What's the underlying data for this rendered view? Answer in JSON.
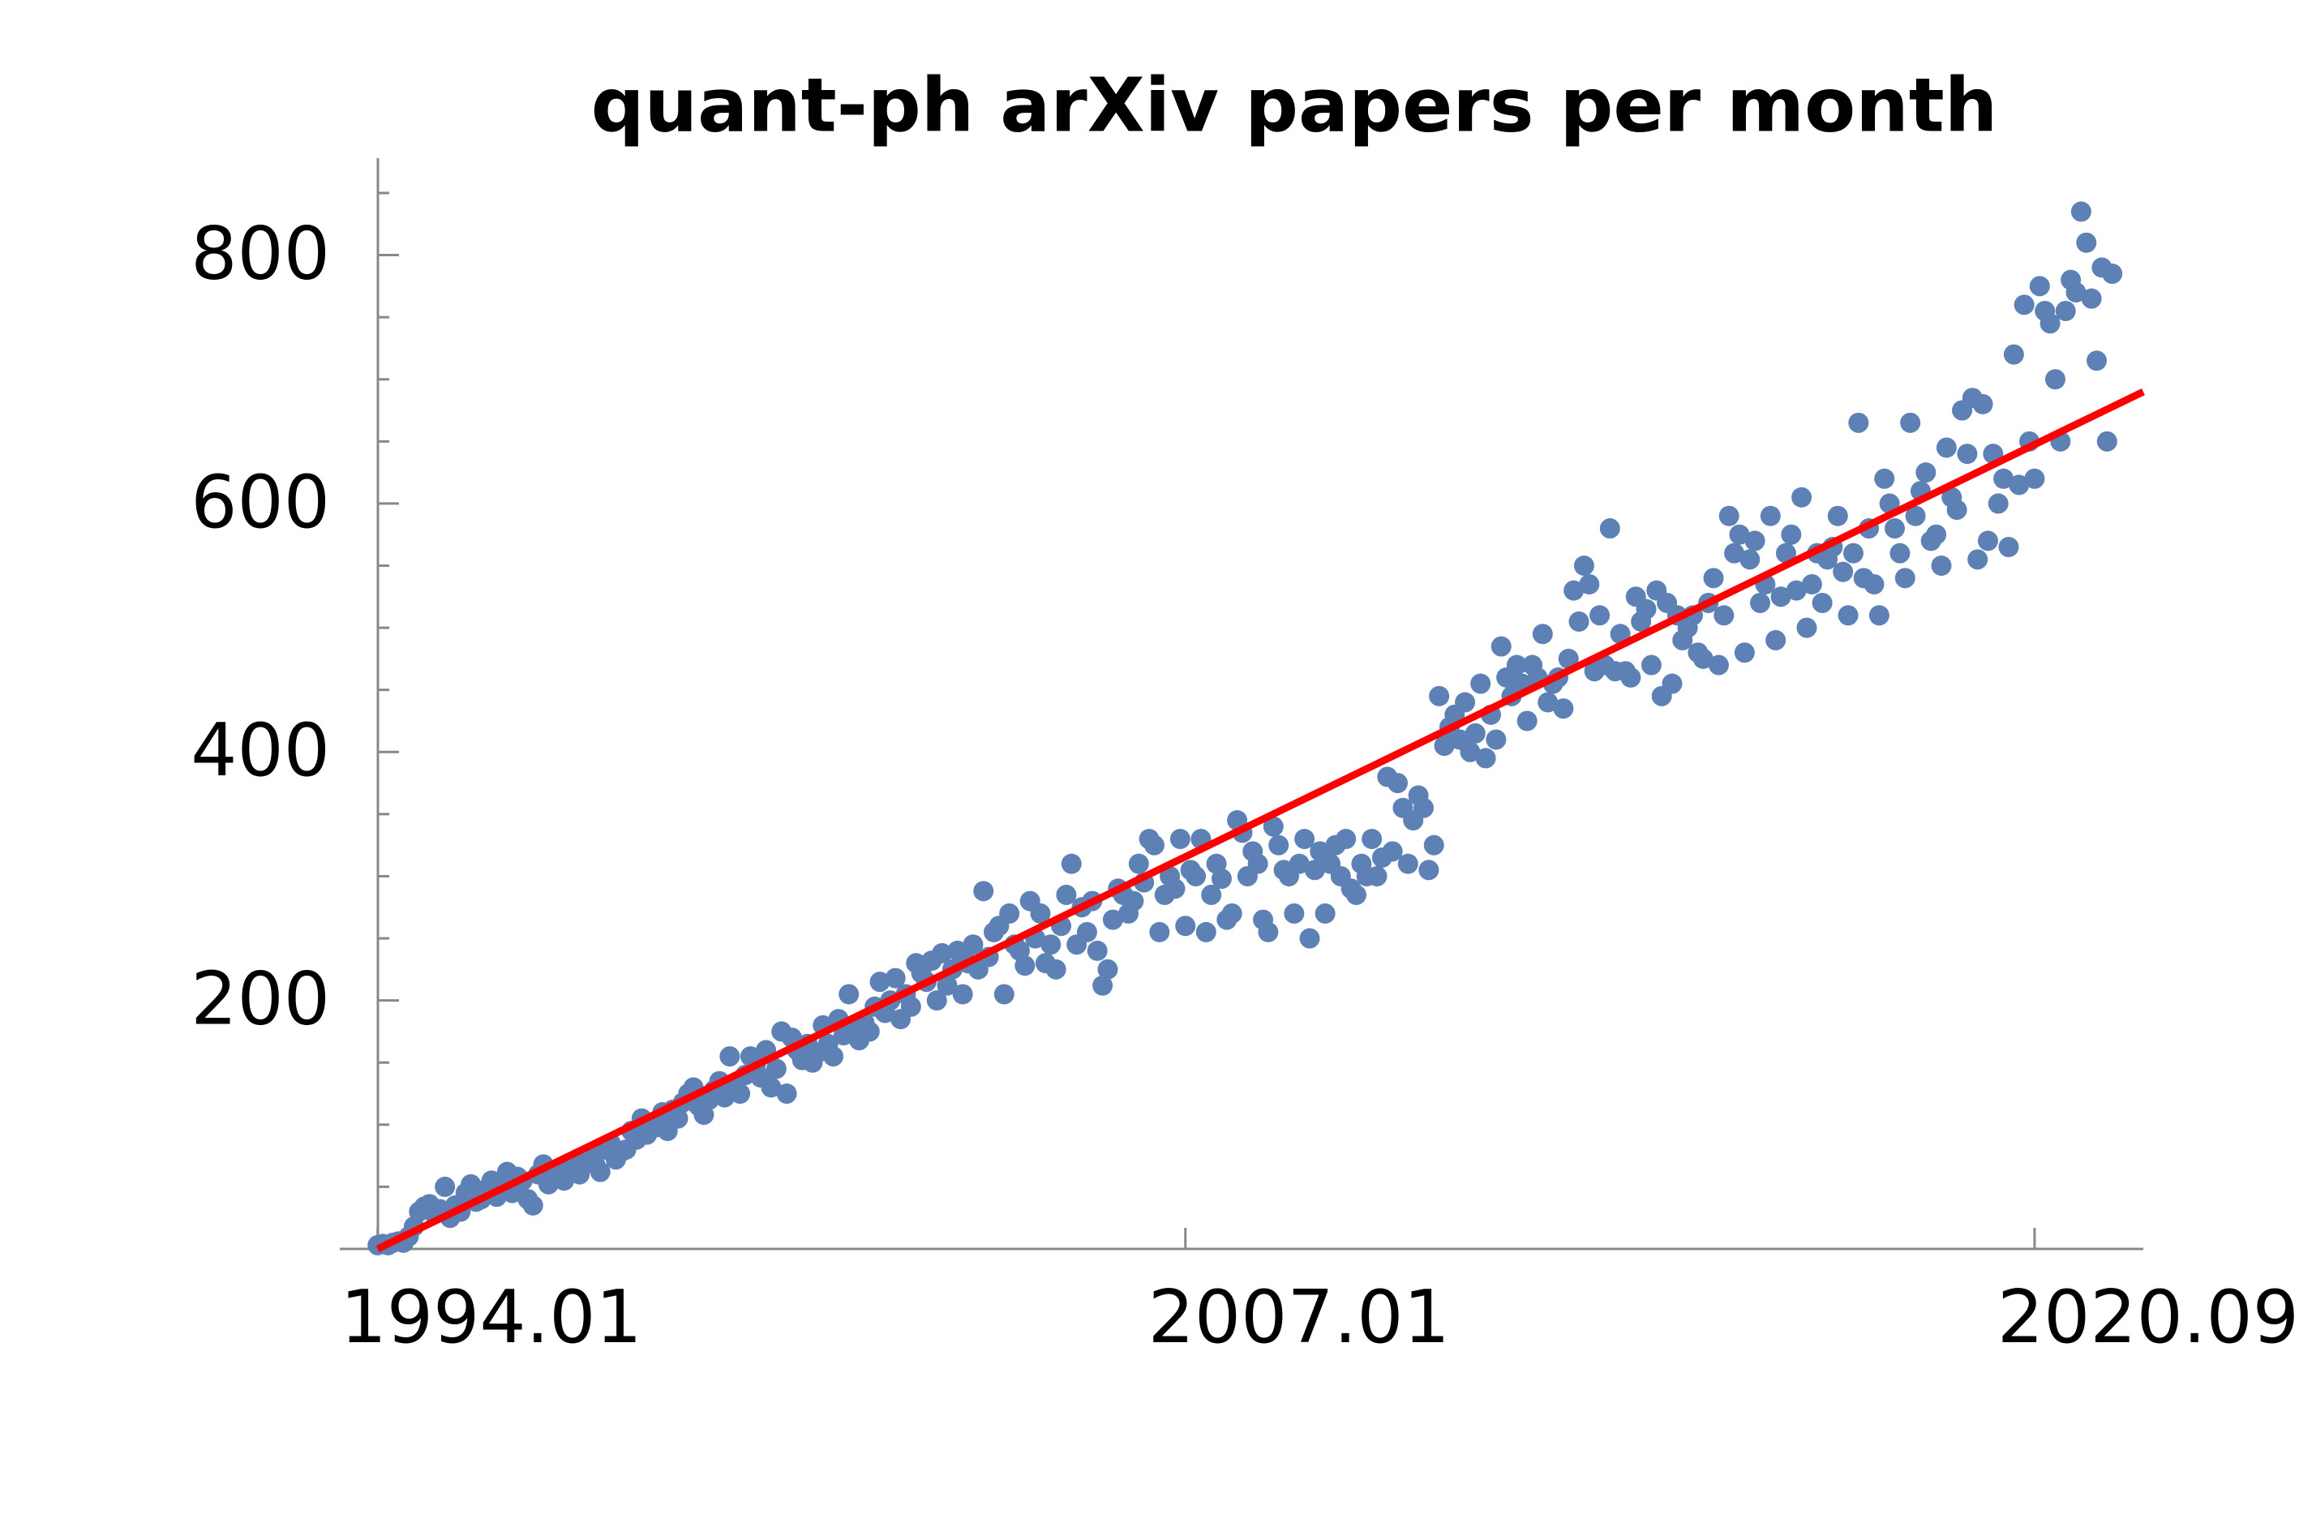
{
  "chart_data": {
    "type": "scatter",
    "title": "quant-ph arXiv papers per month",
    "x": [
      "1994.01",
      "1994.02",
      "1994.03",
      "1994.04",
      "1994.05",
      "1994.06",
      "1994.07",
      "1994.08",
      "1994.09",
      "1994.10",
      "1994.11",
      "1994.12",
      "1995.01",
      "1995.02",
      "1995.03",
      "1995.04",
      "1995.05",
      "1995.06",
      "1995.07",
      "1995.08",
      "1995.09",
      "1995.10",
      "1995.11",
      "1995.12",
      "1996.01",
      "1996.02",
      "1996.03",
      "1996.04",
      "1996.05",
      "1996.06",
      "1996.07",
      "1996.08",
      "1996.09",
      "1996.10",
      "1996.11",
      "1996.12",
      "1997.01",
      "1997.02",
      "1997.03",
      "1997.04",
      "1997.05",
      "1997.06",
      "1997.07",
      "1997.08",
      "1997.09",
      "1997.10",
      "1997.11",
      "1997.12",
      "1998.01",
      "1998.02",
      "1998.03",
      "1998.04",
      "1998.05",
      "1998.06",
      "1998.07",
      "1998.08",
      "1998.09",
      "1998.10",
      "1998.11",
      "1998.12",
      "1999.01",
      "1999.02",
      "1999.03",
      "1999.04",
      "1999.05",
      "1999.06",
      "1999.07",
      "1999.08",
      "1999.09",
      "1999.10",
      "1999.11",
      "1999.12",
      "2000.01",
      "2000.02",
      "2000.03",
      "2000.04",
      "2000.05",
      "2000.06",
      "2000.07",
      "2000.08",
      "2000.09",
      "2000.10",
      "2000.11",
      "2000.12",
      "2001.01",
      "2001.02",
      "2001.03",
      "2001.04",
      "2001.05",
      "2001.06",
      "2001.07",
      "2001.08",
      "2001.09",
      "2001.10",
      "2001.11",
      "2001.12",
      "2002.01",
      "2002.02",
      "2002.03",
      "2002.04",
      "2002.05",
      "2002.06",
      "2002.07",
      "2002.08",
      "2002.09",
      "2002.10",
      "2002.11",
      "2002.12",
      "2003.01",
      "2003.02",
      "2003.03",
      "2003.04",
      "2003.05",
      "2003.06",
      "2003.07",
      "2003.08",
      "2003.09",
      "2003.10",
      "2003.11",
      "2003.12",
      "2004.01",
      "2004.02",
      "2004.03",
      "2004.04",
      "2004.05",
      "2004.06",
      "2004.07",
      "2004.08",
      "2004.09",
      "2004.10",
      "2004.11",
      "2004.12",
      "2005.01",
      "2005.02",
      "2005.03",
      "2005.04",
      "2005.05",
      "2005.06",
      "2005.07",
      "2005.08",
      "2005.09",
      "2005.10",
      "2005.11",
      "2005.12",
      "2006.01",
      "2006.02",
      "2006.03",
      "2006.04",
      "2006.05",
      "2006.06",
      "2006.07",
      "2006.08",
      "2006.09",
      "2006.10",
      "2006.11",
      "2006.12",
      "2007.01",
      "2007.02",
      "2007.03",
      "2007.04",
      "2007.05",
      "2007.06",
      "2007.07",
      "2007.08",
      "2007.09",
      "2007.10",
      "2007.11",
      "2007.12",
      "2008.01",
      "2008.02",
      "2008.03",
      "2008.04",
      "2008.05",
      "2008.06",
      "2008.07",
      "2008.08",
      "2008.09",
      "2008.10",
      "2008.11",
      "2008.12",
      "2009.01",
      "2009.02",
      "2009.03",
      "2009.04",
      "2009.05",
      "2009.06",
      "2009.07",
      "2009.08",
      "2009.09",
      "2009.10",
      "2009.11",
      "2009.12",
      "2010.01",
      "2010.02",
      "2010.03",
      "2010.04",
      "2010.05",
      "2010.06",
      "2010.07",
      "2010.08",
      "2010.09",
      "2010.10",
      "2010.11",
      "2010.12",
      "2011.01",
      "2011.02",
      "2011.03",
      "2011.04",
      "2011.05",
      "2011.06",
      "2011.07",
      "2011.08",
      "2011.09",
      "2011.10",
      "2011.11",
      "2011.12",
      "2012.01",
      "2012.02",
      "2012.03",
      "2012.04",
      "2012.05",
      "2012.06",
      "2012.07",
      "2012.08",
      "2012.09",
      "2012.10",
      "2012.11",
      "2012.12",
      "2013.01",
      "2013.02",
      "2013.03",
      "2013.04",
      "2013.05",
      "2013.06",
      "2013.07",
      "2013.08",
      "2013.09",
      "2013.10",
      "2013.11",
      "2013.12",
      "2014.01",
      "2014.02",
      "2014.03",
      "2014.04",
      "2014.05",
      "2014.06",
      "2014.07",
      "2014.08",
      "2014.09",
      "2014.10",
      "2014.11",
      "2014.12",
      "2015.01",
      "2015.02",
      "2015.03",
      "2015.04",
      "2015.05",
      "2015.06",
      "2015.07",
      "2015.08",
      "2015.09",
      "2015.10",
      "2015.11",
      "2015.12",
      "2016.01",
      "2016.02",
      "2016.03",
      "2016.04",
      "2016.05",
      "2016.06",
      "2016.07",
      "2016.08",
      "2016.09",
      "2016.10",
      "2016.11",
      "2016.12",
      "2017.01",
      "2017.02",
      "2017.03",
      "2017.04",
      "2017.05",
      "2017.06",
      "2017.07",
      "2017.08",
      "2017.09",
      "2017.10",
      "2017.11",
      "2017.12",
      "2018.01",
      "2018.02",
      "2018.03",
      "2018.04",
      "2018.05",
      "2018.06",
      "2018.07",
      "2018.08",
      "2018.09",
      "2018.10",
      "2018.11",
      "2018.12",
      "2019.01",
      "2019.02",
      "2019.03",
      "2019.04",
      "2019.05",
      "2019.06",
      "2019.07",
      "2019.08",
      "2019.09",
      "2019.10",
      "2019.11",
      "2019.12",
      "2020.01",
      "2020.02",
      "2020.03",
      "2020.04",
      "2020.05",
      "2020.06",
      "2020.07",
      "2020.08",
      "2020.09",
      "2020.10",
      "2020.11",
      "2020.12",
      "2021.01",
      "2021.02",
      "2021.03",
      "2021.04",
      "2021.05",
      "2021.06",
      "2021.07",
      "2021.08",
      "2021.09",
      "2021.10",
      "2021.11",
      "2021.12"
    ],
    "values": [
      3,
      4,
      3,
      5,
      6,
      5,
      10,
      18,
      30,
      34,
      36,
      28,
      32,
      50,
      25,
      35,
      30,
      45,
      52,
      38,
      40,
      48,
      55,
      42,
      50,
      62,
      45,
      58,
      55,
      40,
      35,
      60,
      68,
      52,
      58,
      62,
      55,
      65,
      70,
      60,
      72,
      75,
      68,
      62,
      80,
      85,
      72,
      78,
      80,
      95,
      88,
      105,
      92,
      100,
      98,
      110,
      95,
      112,
      105,
      118,
      125,
      130,
      115,
      108,
      120,
      128,
      135,
      122,
      155,
      132,
      125,
      140,
      155,
      148,
      138,
      160,
      130,
      145,
      175,
      125,
      170,
      160,
      152,
      165,
      150,
      158,
      180,
      165,
      155,
      185,
      172,
      205,
      178,
      168,
      182,
      175,
      195,
      215,
      190,
      200,
      218,
      185,
      205,
      195,
      230,
      222,
      215,
      232,
      200,
      238,
      212,
      225,
      240,
      205,
      230,
      245,
      225,
      288,
      235,
      255,
      260,
      205,
      270,
      245,
      240,
      228,
      280,
      250,
      270,
      230,
      245,
      225,
      260,
      285,
      310,
      245,
      275,
      255,
      280,
      240,
      212,
      225,
      265,
      290,
      285,
      270,
      280,
      310,
      295,
      330,
      325,
      255,
      285,
      300,
      290,
      330,
      260,
      305,
      300,
      330,
      255,
      285,
      310,
      298,
      265,
      270,
      345,
      335,
      300,
      320,
      310,
      265,
      255,
      340,
      325,
      305,
      300,
      270,
      310,
      330,
      250,
      305,
      320,
      270,
      310,
      325,
      300,
      330,
      290,
      285,
      310,
      300,
      330,
      300,
      315,
      380,
      320,
      375,
      355,
      310,
      345,
      365,
      355,
      305,
      325,
      445,
      405,
      420,
      430,
      410,
      440,
      400,
      415,
      455,
      395,
      430,
      410,
      485,
      460,
      445,
      470,
      455,
      425,
      470,
      460,
      495,
      440,
      455,
      460,
      435,
      475,
      530,
      505,
      550,
      535,
      465,
      510,
      470,
      580,
      465,
      495,
      465,
      460,
      525,
      505,
      515,
      470,
      530,
      445,
      520,
      455,
      510,
      490,
      500,
      510,
      480,
      475,
      520,
      540,
      470,
      510,
      590,
      560,
      575,
      480,
      555,
      570,
      520,
      535,
      590,
      490,
      525,
      560,
      575,
      530,
      605,
      500,
      535,
      560,
      520,
      555,
      565,
      590,
      545,
      510,
      560,
      665,
      540,
      580,
      535,
      510,
      620,
      600,
      580,
      560,
      540,
      665,
      590,
      610,
      625,
      570,
      575,
      550,
      645,
      605,
      595,
      675,
      640,
      685,
      555,
      680,
      570,
      640,
      600,
      620,
      565,
      720,
      615,
      760,
      650,
      620,
      775,
      755,
      745,
      700,
      650,
      755,
      780,
      770,
      835,
      810,
      765,
      715,
      790,
      650,
      785
    ],
    "color": "#5e81b5",
    "fit_line": {
      "x": [
        "1994.01",
        "2022.06"
      ],
      "values": [
        0,
        690
      ],
      "color": "#ff0000"
    },
    "xlim": [
      "1993.06",
      "2022.06"
    ],
    "xticks": [
      "1994.01",
      "2007.01",
      "2020.09"
    ],
    "ylim": [
      0,
      880
    ],
    "yticks": [
      200,
      400,
      600,
      800
    ],
    "yminorticks": [
      50,
      100,
      150,
      250,
      300,
      350,
      450,
      500,
      550,
      650,
      700,
      750,
      850
    ],
    "grid": false
  }
}
